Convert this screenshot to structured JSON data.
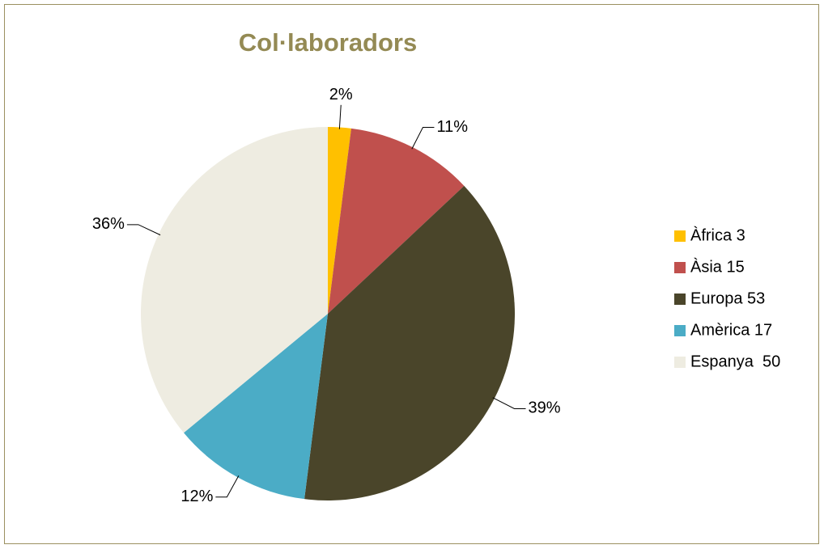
{
  "chart_data": {
    "type": "pie",
    "title": "Col·laboradors",
    "categories": [
      "Àfrica 3",
      "Àsia 15",
      "Europa 53",
      "Amèrica 17",
      "Espanya  50"
    ],
    "values": [
      2,
      11,
      39,
      12,
      36
    ],
    "value_labels": [
      "2%",
      "11%",
      "39%",
      "12%",
      "36%"
    ],
    "colors": [
      "#ffc000",
      "#c0504d",
      "#4a452a",
      "#4bacc6",
      "#eeece1"
    ],
    "legend": "right"
  }
}
